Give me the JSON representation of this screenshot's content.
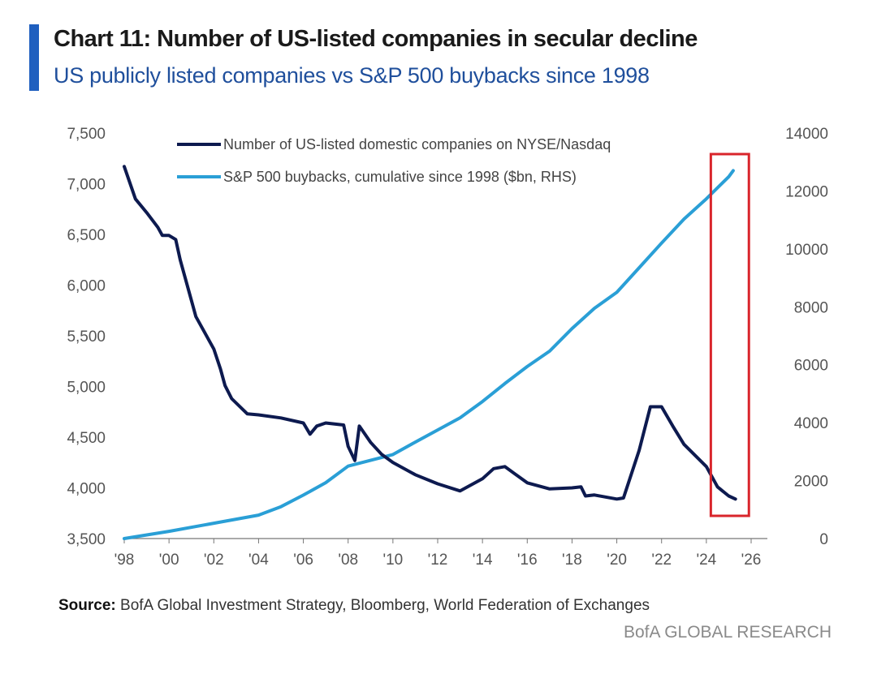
{
  "header": {
    "title": "Chart 11: Number of US-listed companies in secular decline",
    "subtitle": "US publicly listed companies vs S&P 500 buybacks since 1998"
  },
  "footer": {
    "source_label": "Source:",
    "source_text": "BofA Global Investment Strategy, Bloomberg, World Federation of Exchanges",
    "brand": "BofA GLOBAL RESEARCH"
  },
  "colors": {
    "companies": "#0d1a4f",
    "buybacks": "#2a9fd6",
    "highlight": "#d9252b",
    "accent": "#1f5fbf"
  },
  "chart_data": {
    "type": "line",
    "title": "Chart 11: Number of US-listed companies in secular decline",
    "subtitle": "US publicly listed companies vs S&P 500 buybacks since 1998",
    "x_ticks": [
      "'98",
      "'00",
      "'02",
      "'04",
      "'06",
      "'08",
      "'10",
      "'12",
      "'14",
      "'16",
      "'18",
      "'20",
      "'22",
      "'24",
      "'26"
    ],
    "x_range": [
      1998,
      2026
    ],
    "y_left": {
      "range": [
        3500,
        7500
      ],
      "ticks": [
        "3,500",
        "4,000",
        "4,500",
        "5,000",
        "5,500",
        "6,000",
        "6,500",
        "7,000",
        "7,500"
      ]
    },
    "y_right": {
      "range": [
        0,
        14000
      ],
      "ticks": [
        "0",
        "2000",
        "4000",
        "6000",
        "8000",
        "10000",
        "12000",
        "14000"
      ]
    },
    "legend_position": "top",
    "grid": false,
    "highlight": {
      "x_range": [
        2024.2,
        2025.9
      ],
      "note": "red box around latest period"
    },
    "series": [
      {
        "name": "Number of US-listed domestic companies on NYSE/Nasdaq",
        "axis": "left",
        "points": [
          [
            1998.0,
            7170
          ],
          [
            1998.5,
            6850
          ],
          [
            1999.0,
            6715
          ],
          [
            1999.5,
            6570
          ],
          [
            1999.7,
            6490
          ],
          [
            2000.0,
            6490
          ],
          [
            2000.3,
            6450
          ],
          [
            2000.5,
            6250
          ],
          [
            2001.0,
            5850
          ],
          [
            2001.2,
            5690
          ],
          [
            2002.0,
            5370
          ],
          [
            2002.3,
            5170
          ],
          [
            2002.5,
            5010
          ],
          [
            2002.8,
            4880
          ],
          [
            2003.5,
            4730
          ],
          [
            2004.0,
            4720
          ],
          [
            2005.0,
            4690
          ],
          [
            2006.0,
            4640
          ],
          [
            2006.3,
            4530
          ],
          [
            2006.6,
            4610
          ],
          [
            2007.0,
            4640
          ],
          [
            2007.8,
            4620
          ],
          [
            2008.0,
            4410
          ],
          [
            2008.3,
            4270
          ],
          [
            2008.5,
            4610
          ],
          [
            2009.0,
            4450
          ],
          [
            2009.5,
            4330
          ],
          [
            2010.0,
            4250
          ],
          [
            2011.0,
            4130
          ],
          [
            2012.0,
            4040
          ],
          [
            2013.0,
            3970
          ],
          [
            2014.0,
            4090
          ],
          [
            2014.5,
            4190
          ],
          [
            2015.0,
            4210
          ],
          [
            2016.0,
            4050
          ],
          [
            2017.0,
            3990
          ],
          [
            2018.0,
            4000
          ],
          [
            2018.4,
            4010
          ],
          [
            2018.6,
            3920
          ],
          [
            2019.0,
            3930
          ],
          [
            2020.0,
            3890
          ],
          [
            2020.3,
            3900
          ],
          [
            2021.0,
            4370
          ],
          [
            2021.5,
            4800
          ],
          [
            2022.0,
            4800
          ],
          [
            2022.5,
            4610
          ],
          [
            2023.0,
            4430
          ],
          [
            2024.0,
            4210
          ],
          [
            2024.5,
            4010
          ],
          [
            2025.0,
            3920
          ],
          [
            2025.3,
            3890
          ]
        ]
      },
      {
        "name": "S&P 500 buybacks, cumulative since 1998 ($bn, RHS)",
        "axis": "right",
        "points": [
          [
            1998,
            0
          ],
          [
            2000,
            250
          ],
          [
            2002,
            530
          ],
          [
            2004,
            810
          ],
          [
            2005,
            1100
          ],
          [
            2006,
            1500
          ],
          [
            2007,
            1930
          ],
          [
            2008,
            2500
          ],
          [
            2009,
            2700
          ],
          [
            2010,
            2900
          ],
          [
            2011,
            3330
          ],
          [
            2012,
            3750
          ],
          [
            2013,
            4170
          ],
          [
            2014,
            4730
          ],
          [
            2015,
            5350
          ],
          [
            2016,
            5940
          ],
          [
            2017,
            6470
          ],
          [
            2018,
            7250
          ],
          [
            2019,
            7950
          ],
          [
            2020,
            8500
          ],
          [
            2021,
            9350
          ],
          [
            2022,
            10200
          ],
          [
            2023,
            11030
          ],
          [
            2024,
            11730
          ],
          [
            2025,
            12490
          ],
          [
            2025.2,
            12700
          ]
        ]
      }
    ]
  }
}
